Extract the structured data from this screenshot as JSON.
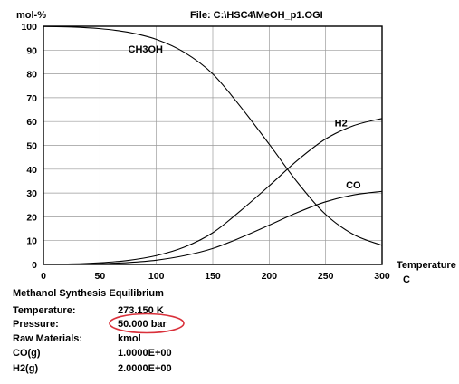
{
  "chart_data": {
    "type": "line",
    "y_unit_label": "mol-%",
    "file_label": "File: C:\\HSC4\\MeOH_p1.OGI",
    "xlabel": "Temperature",
    "x_unit": "C",
    "xlim": [
      0,
      300
    ],
    "ylim": [
      0,
      100
    ],
    "x_ticks": [
      0,
      50,
      100,
      150,
      200,
      250,
      300
    ],
    "y_ticks": [
      0,
      10,
      20,
      30,
      40,
      50,
      60,
      70,
      80,
      90,
      100
    ],
    "grid": true,
    "legend": "inline labels",
    "x": [
      0,
      25,
      50,
      75,
      100,
      125,
      150,
      175,
      200,
      225,
      250,
      275,
      300
    ],
    "series": [
      {
        "name": "CH3OH",
        "color": "#000000",
        "values": [
          99.9,
          99.7,
          99.0,
          97.5,
          94.5,
          89.0,
          80.0,
          66.0,
          50.5,
          34.5,
          21.0,
          12.5,
          8.0
        ]
      },
      {
        "name": "H2",
        "color": "#000000",
        "values": [
          0.1,
          0.2,
          0.7,
          1.7,
          3.7,
          7.3,
          13.3,
          22.7,
          33.0,
          43.7,
          52.7,
          58.3,
          61.3
        ]
      },
      {
        "name": "CO",
        "color": "#000000",
        "values": [
          0.0,
          0.1,
          0.3,
          0.8,
          1.8,
          3.7,
          6.7,
          11.3,
          16.5,
          21.8,
          26.3,
          29.2,
          30.7
        ]
      }
    ]
  },
  "info": {
    "title": "Methanol Synthesis Equilibrium",
    "rows": [
      {
        "label": "Temperature:",
        "value": "273.150 K"
      },
      {
        "label": "Pressure:",
        "value": "50.000 bar",
        "circled": true,
        "circle_color": "#d9303a"
      },
      {
        "label": "Raw Materials:",
        "value": "kmol"
      },
      {
        "label": "CO(g)",
        "value": "1.0000E+00"
      },
      {
        "label": "H2(g)",
        "value": "2.0000E+00"
      }
    ]
  }
}
